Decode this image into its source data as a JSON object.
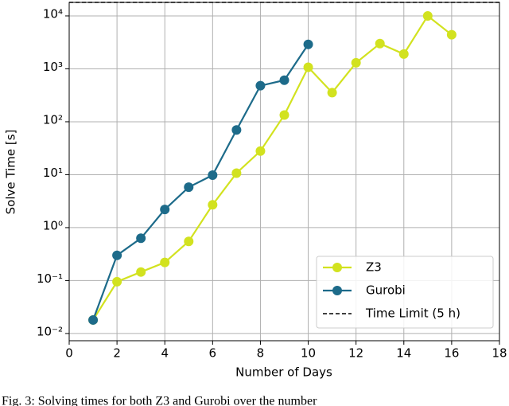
{
  "chart_data": {
    "type": "line",
    "caption": "Fig. 3: Solving times for both Z3 and Gurobi over the number",
    "x_label": "Number of Days",
    "y_label": "Solve Time [s]",
    "y_scale": "log",
    "grid": true,
    "legend_position": "lower right",
    "xlim": [
      0,
      18
    ],
    "xticks": [
      0,
      2,
      4,
      6,
      8,
      10,
      12,
      14,
      16,
      18
    ],
    "ylim": [
      0.0073,
      18000
    ],
    "yticks": [
      {
        "value": 0.01,
        "label": "10⁻²"
      },
      {
        "value": 0.1,
        "label": "10⁻¹"
      },
      {
        "value": 1,
        "label": "10⁰"
      },
      {
        "value": 10,
        "label": "10¹"
      },
      {
        "value": 100,
        "label": "10²"
      },
      {
        "value": 1000,
        "label": "10³"
      },
      {
        "value": 10000,
        "label": "10⁴"
      }
    ],
    "series": [
      {
        "name": "Z3",
        "color": "#d2e21f",
        "x": [
          1,
          2,
          3,
          4,
          5,
          6,
          7,
          8,
          9,
          10,
          11,
          12,
          13,
          14,
          15,
          16
        ],
        "values": [
          0.018,
          0.095,
          0.145,
          0.22,
          0.55,
          2.7,
          10.7,
          28,
          134,
          1070,
          355,
          1300,
          3000,
          1900,
          10000,
          4400
        ]
      },
      {
        "name": "Gurobi",
        "color": "#1d6b8a",
        "x": [
          1,
          2,
          3,
          4,
          5,
          6,
          7,
          8,
          9,
          10
        ],
        "values": [
          0.018,
          0.3,
          0.63,
          2.2,
          5.8,
          9.8,
          70,
          480,
          610,
          2900
        ]
      }
    ],
    "time_limit": {
      "name": "Time Limit (5 h)",
      "value": 18000,
      "color": "#000000"
    }
  }
}
